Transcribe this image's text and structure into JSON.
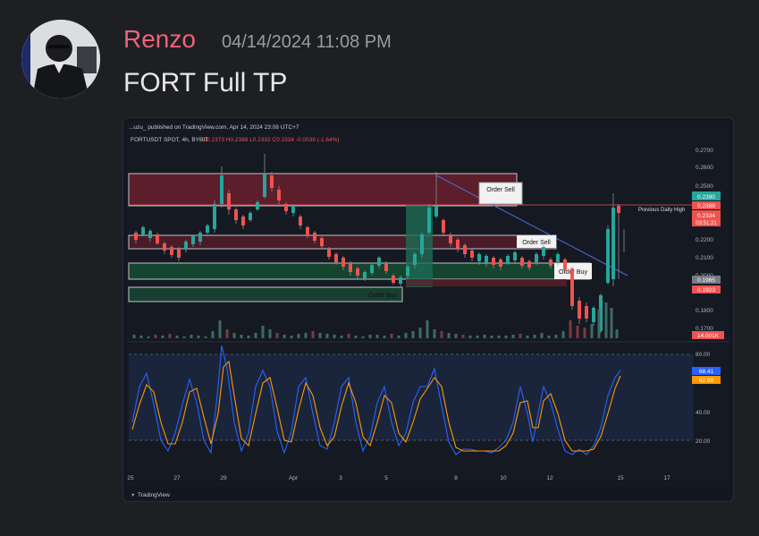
{
  "message": {
    "username": "Renzo",
    "timestamp": "04/14/2024 11:08 PM",
    "text": "FORT Full TP"
  },
  "chart": {
    "published_line": "...uzu_ published on TradingView.com, Apr 14, 2024 23:08 UTC+7",
    "symbol_info": "FORTUSDT SPOT, 4h, BYBIT",
    "ohlc": "O0.2373  H0.2388  L0.2332  C0.2334  -0.0039 (-1.64%)",
    "zones": {
      "order_sell_top": "Order Sell",
      "order_sell_mid": "Order Sell",
      "order_buy_mid": "Order Buy",
      "order_buy_low": "Order Buy",
      "previous_daily_high": "Previous Daily High"
    },
    "price_axis": [
      "0.2700",
      "0.2600",
      "0.2500",
      "0.2200",
      "0.2100",
      "0.2000",
      "0.1800",
      "0.1700"
    ],
    "price_tags": {
      "green_top": "0.2390",
      "red_high": "0.2388",
      "current": "0.2334",
      "countdown": "03:51:21",
      "gray_level": "0.1965",
      "red_level": "0.1923",
      "volume": "14.001K"
    },
    "osc_axis": [
      "80.00",
      "40.00",
      "20.00"
    ],
    "osc_tags": {
      "k": "68.41",
      "d": "62.98"
    },
    "time_axis": [
      "25",
      "27",
      "29",
      "Apr",
      "3",
      "5",
      "8",
      "10",
      "12",
      "15",
      "17"
    ],
    "brand": "TradingView",
    "colors": {
      "up": "#26a69a",
      "down": "#ef5350",
      "k_line": "#2962ff",
      "d_line": "#ff9800"
    }
  }
}
